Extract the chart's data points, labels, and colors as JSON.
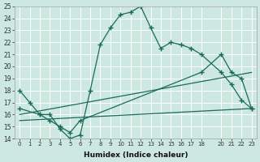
{
  "bg_color": "#cce8e0",
  "grid_color": "#ffffff",
  "line_color": "#1a6b5a",
  "xlabel": "Humidex (Indice chaleur)",
  "ylim": [
    14,
    25
  ],
  "xlim": [
    -0.5,
    23.5
  ],
  "yticks": [
    14,
    15,
    16,
    17,
    18,
    19,
    20,
    21,
    22,
    23,
    24,
    25
  ],
  "xticks": [
    0,
    1,
    2,
    3,
    4,
    5,
    6,
    7,
    8,
    9,
    10,
    11,
    12,
    13,
    14,
    15,
    16,
    17,
    18,
    20,
    21,
    22,
    23
  ],
  "line1_x": [
    0,
    1,
    2,
    3,
    4,
    5,
    6,
    7,
    8,
    9,
    10,
    11,
    12,
    13,
    14,
    15,
    16,
    17,
    18,
    20,
    21,
    22,
    23
  ],
  "line1_y": [
    18.0,
    17.0,
    16.0,
    16.0,
    14.8,
    14.0,
    14.3,
    18.0,
    21.8,
    23.2,
    24.3,
    24.5,
    25.0,
    23.2,
    21.5,
    22.0,
    21.8,
    21.5,
    21.0,
    19.5,
    18.5,
    17.2,
    16.5
  ],
  "line2_x": [
    0,
    2,
    3,
    4,
    5,
    6,
    18,
    20,
    21,
    22,
    23
  ],
  "line2_y": [
    16.5,
    16.0,
    15.5,
    15.0,
    14.5,
    15.5,
    19.5,
    21.0,
    19.5,
    19.0,
    16.5
  ],
  "line3_x": [
    0,
    23
  ],
  "line3_y": [
    16.0,
    19.5
  ],
  "line4_x": [
    0,
    23
  ],
  "line4_y": [
    15.5,
    16.5
  ],
  "marker_style": "+"
}
